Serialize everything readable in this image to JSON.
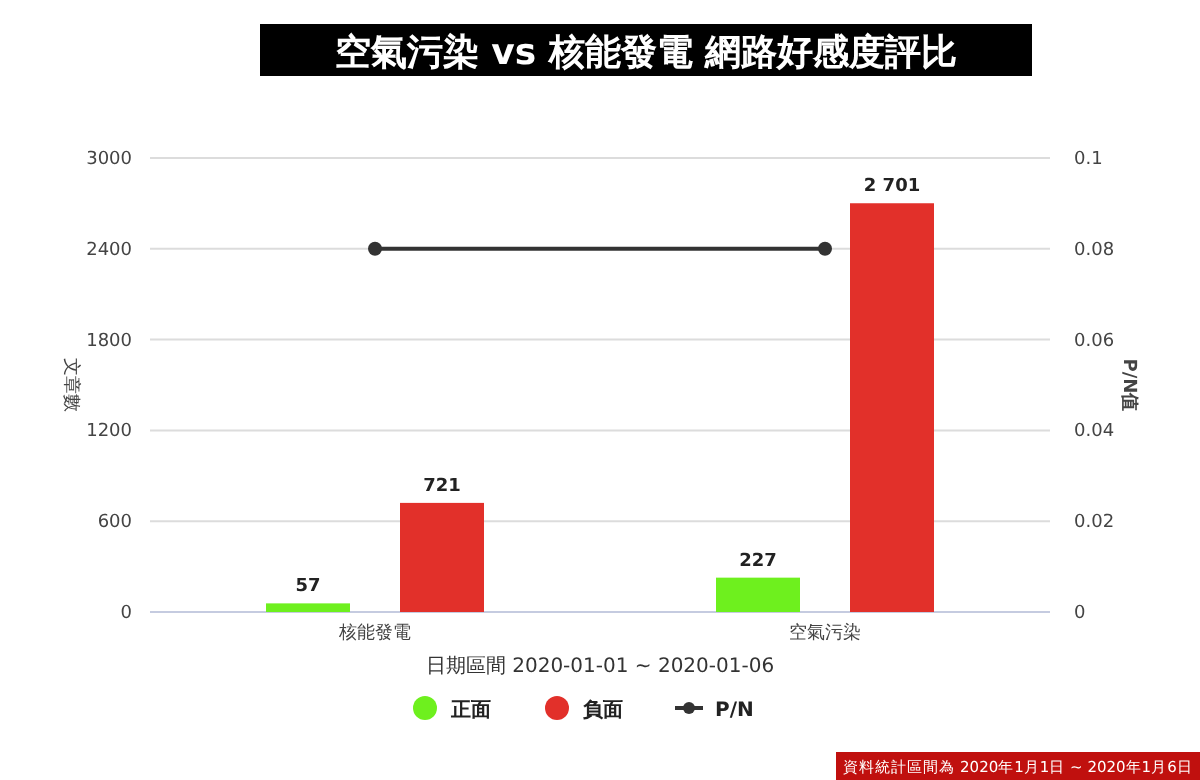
{
  "chart_data": {
    "type": "bar",
    "title": "空氣污染 vs 核能發電 網路好感度評比",
    "xlabel": "日期區間 2020-01-01 ~ 2020-01-06",
    "ylabel": "文章數",
    "y2label": "P/N值",
    "annotations": [
      "資料統計區間為 2020年1月1日 ~ 2020年1月6日"
    ],
    "categories": [
      "核能發電",
      "空氣污染"
    ],
    "series": [
      {
        "name": "正面",
        "color": "#6ef01e",
        "values": [
          57,
          227
        ],
        "value_labels": [
          "57",
          "227"
        ]
      },
      {
        "name": "負面",
        "color": "#e2302a",
        "values": [
          721,
          2701
        ],
        "value_labels": [
          "721",
          "2 701"
        ]
      },
      {
        "name": "P/N",
        "type": "line",
        "axis": "y2",
        "color": "#333333",
        "marker": "circle",
        "values": [
          0.08,
          0.08
        ]
      }
    ],
    "ylim": [
      0,
      3000
    ],
    "yticks": [
      0,
      600,
      1200,
      1800,
      2400,
      3000
    ],
    "y2lim": [
      0,
      0.1
    ],
    "y2ticks": [
      0,
      0.02,
      0.04,
      0.06,
      0.08,
      0.1
    ],
    "grid": "y",
    "legend": "bottom"
  }
}
